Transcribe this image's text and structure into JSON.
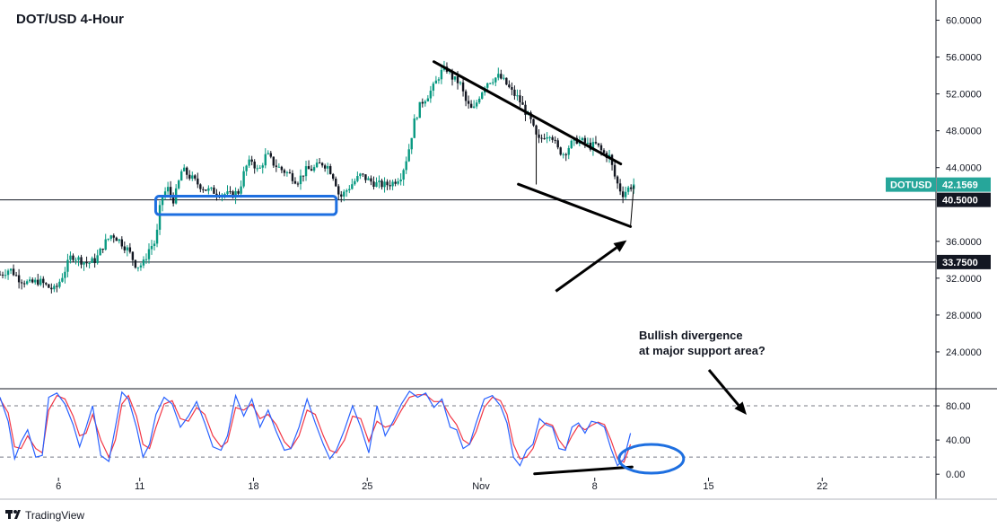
{
  "chart_data": {
    "type": "candlestick",
    "title": "DOT/USD 4-Hour",
    "symbol_tag": "DOTUSD",
    "last_price_label": "42.1569",
    "price_axis": {
      "range": [
        20,
        62
      ],
      "ticks": [
        {
          "value": 60,
          "label": "60.0000"
        },
        {
          "value": 56,
          "label": "56.0000"
        },
        {
          "value": 52,
          "label": "52.0000"
        },
        {
          "value": 48,
          "label": "48.0000"
        },
        {
          "value": 44,
          "label": "44.0000"
        },
        {
          "value": 36,
          "label": "36.0000"
        },
        {
          "value": 32,
          "label": "32.0000"
        },
        {
          "value": 28,
          "label": "28.0000"
        },
        {
          "value": 24,
          "label": "24.0000"
        }
      ]
    },
    "horizontal_levels": [
      {
        "value": 40.5,
        "label": "40.5000"
      },
      {
        "value": 33.75,
        "label": "33.7500"
      }
    ],
    "support_zone": {
      "low": 38.9,
      "high": 40.9,
      "start_day": 12.2,
      "end_day": 23.1
    },
    "time_axis": {
      "range": [
        2.4,
        25.2
      ],
      "ticks": [
        {
          "day": 6,
          "label": "6"
        },
        {
          "day": 11,
          "label": "11"
        },
        {
          "day": 18,
          "label": "18"
        },
        {
          "day": 25,
          "label": "25"
        },
        {
          "day": 32,
          "label": "Nov"
        },
        {
          "day": 39,
          "label": "8"
        },
        {
          "day": 46,
          "label": "15"
        },
        {
          "day": 53,
          "label": "22"
        }
      ]
    },
    "price_path": [
      [
        2.4,
        32.4
      ],
      [
        3.0,
        33.0
      ],
      [
        3.6,
        31.9
      ],
      [
        4.2,
        31.4
      ],
      [
        4.8,
        31.7
      ],
      [
        5.4,
        31.0
      ],
      [
        5.8,
        30.7
      ],
      [
        6.3,
        32.5
      ],
      [
        6.8,
        34.5
      ],
      [
        7.3,
        34.0
      ],
      [
        7.8,
        33.6
      ],
      [
        8.3,
        34.0
      ],
      [
        8.8,
        35.7
      ],
      [
        9.3,
        36.8
      ],
      [
        9.8,
        36.0
      ],
      [
        10.3,
        35.0
      ],
      [
        10.8,
        33.3
      ],
      [
        11.2,
        33.5
      ],
      [
        11.6,
        35.3
      ],
      [
        12.0,
        36.0
      ],
      [
        12.3,
        40.5
      ],
      [
        12.7,
        41.8
      ],
      [
        13.1,
        40.4
      ],
      [
        13.6,
        43.8
      ],
      [
        14.1,
        43.0
      ],
      [
        14.6,
        42.2
      ],
      [
        15.1,
        41.6
      ],
      [
        15.6,
        41.4
      ],
      [
        16.1,
        41.2
      ],
      [
        16.6,
        41.0
      ],
      [
        17.1,
        41.4
      ],
      [
        17.5,
        44.0
      ],
      [
        17.9,
        44.8
      ],
      [
        18.3,
        43.5
      ],
      [
        18.8,
        45.5
      ],
      [
        19.2,
        44.5
      ],
      [
        19.7,
        43.8
      ],
      [
        20.2,
        43.3
      ],
      [
        20.7,
        42.5
      ],
      [
        21.2,
        43.7
      ],
      [
        21.7,
        43.9
      ],
      [
        22.2,
        44.5
      ],
      [
        22.6,
        44.1
      ],
      [
        23.0,
        42.8
      ],
      [
        23.3,
        40.7
      ],
      [
        23.7,
        41.5
      ],
      [
        24.1,
        42.3
      ],
      [
        24.6,
        43.2
      ],
      [
        25.1,
        42.6
      ],
      [
        25.6,
        42.2
      ],
      [
        26.1,
        42.1
      ],
      [
        26.6,
        42.4
      ],
      [
        27.1,
        43.2
      ],
      [
        27.5,
        45.5
      ],
      [
        27.9,
        49.0
      ],
      [
        28.3,
        51.0
      ],
      [
        28.7,
        51.8
      ],
      [
        29.1,
        52.8
      ],
      [
        29.5,
        54.3
      ],
      [
        29.9,
        54.7
      ],
      [
        30.3,
        53.6
      ],
      [
        30.7,
        53.2
      ],
      [
        31.1,
        51.0
      ],
      [
        31.5,
        50.1
      ],
      [
        31.9,
        51.8
      ],
      [
        32.3,
        53.2
      ],
      [
        32.7,
        53.6
      ],
      [
        33.1,
        53.9
      ],
      [
        33.5,
        53.2
      ],
      [
        33.9,
        52.2
      ],
      [
        34.3,
        51.5
      ],
      [
        34.7,
        50.2
      ],
      [
        35.1,
        48.9
      ],
      [
        35.5,
        46.8
      ],
      [
        35.9,
        47.5
      ],
      [
        36.3,
        47.8
      ],
      [
        36.7,
        46.0
      ],
      [
        37.1,
        45.5
      ],
      [
        37.5,
        46.5
      ],
      [
        37.9,
        47.0
      ],
      [
        38.3,
        46.8
      ],
      [
        38.7,
        46.3
      ],
      [
        39.1,
        46.5
      ],
      [
        39.5,
        45.6
      ],
      [
        39.9,
        45.2
      ],
      [
        40.3,
        42.6
      ],
      [
        40.7,
        41.1
      ],
      [
        41.1,
        41.8
      ],
      [
        41.4,
        42.2
      ]
    ],
    "trendlines": [
      {
        "from": [
          29.1,
          55.5
        ],
        "to": [
          40.6,
          44.4
        ],
        "width": 3
      },
      {
        "from": [
          34.3,
          42.2
        ],
        "to": [
          41.2,
          37.6
        ],
        "width": 3
      },
      {
        "from": [
          35.4,
          42.2
        ],
        "to": [
          35.4,
          48.0
        ],
        "width": 1
      },
      {
        "from": [
          41.2,
          37.6
        ],
        "to": [
          41.4,
          42.0
        ],
        "width": 1
      }
    ],
    "annotation": {
      "lines": [
        "Bullish divergence",
        "at major support area?"
      ],
      "arrows": [
        {
          "from": [
            35.5,
            30.0
          ],
          "to": [
            41.3,
            36.5
          ]
        },
        {
          "from": [
            37.5,
            24.0
          ],
          "to": [
            40.8,
            20.4
          ]
        }
      ]
    },
    "oscillator": {
      "range": [
        -4,
        100
      ],
      "ticks": [
        {
          "value": 80,
          "label": "80.00"
        },
        {
          "value": 40,
          "label": "40.00"
        },
        {
          "value": 0,
          "label": "0.00"
        }
      ],
      "levels": [
        80,
        20
      ],
      "k_color": "#2962ff",
      "d_color": "#f23645",
      "k_values": [
        [
          2.4,
          90
        ],
        [
          2.9,
          62
        ],
        [
          3.3,
          18
        ],
        [
          3.7,
          38
        ],
        [
          4.1,
          52
        ],
        [
          4.6,
          20
        ],
        [
          5.0,
          22
        ],
        [
          5.4,
          90
        ],
        [
          5.9,
          95
        ],
        [
          6.4,
          82
        ],
        [
          6.9,
          58
        ],
        [
          7.3,
          32
        ],
        [
          7.7,
          55
        ],
        [
          8.1,
          80
        ],
        [
          8.6,
          22
        ],
        [
          9.1,
          15
        ],
        [
          9.5,
          55
        ],
        [
          9.9,
          96
        ],
        [
          10.3,
          88
        ],
        [
          10.8,
          55
        ],
        [
          11.2,
          20
        ],
        [
          11.6,
          35
        ],
        [
          12.0,
          70
        ],
        [
          12.5,
          90
        ],
        [
          13.0,
          82
        ],
        [
          13.5,
          55
        ],
        [
          14.0,
          68
        ],
        [
          14.5,
          85
        ],
        [
          15.0,
          60
        ],
        [
          15.5,
          32
        ],
        [
          16.0,
          28
        ],
        [
          16.4,
          45
        ],
        [
          16.9,
          92
        ],
        [
          17.4,
          68
        ],
        [
          17.9,
          88
        ],
        [
          18.4,
          55
        ],
        [
          18.9,
          75
        ],
        [
          19.4,
          50
        ],
        [
          19.9,
          28
        ],
        [
          20.3,
          30
        ],
        [
          20.8,
          55
        ],
        [
          21.3,
          88
        ],
        [
          21.8,
          60
        ],
        [
          22.3,
          35
        ],
        [
          22.7,
          18
        ],
        [
          23.1,
          28
        ],
        [
          23.6,
          52
        ],
        [
          24.1,
          80
        ],
        [
          24.6,
          55
        ],
        [
          25.1,
          25
        ],
        [
          25.6,
          80
        ],
        [
          26.1,
          45
        ],
        [
          26.6,
          62
        ],
        [
          27.1,
          82
        ],
        [
          27.6,
          97
        ],
        [
          28.1,
          90
        ],
        [
          28.6,
          95
        ],
        [
          29.1,
          78
        ],
        [
          29.6,
          88
        ],
        [
          30.1,
          55
        ],
        [
          30.5,
          52
        ],
        [
          30.9,
          30
        ],
        [
          31.3,
          35
        ],
        [
          31.7,
          60
        ],
        [
          32.2,
          88
        ],
        [
          32.7,
          92
        ],
        [
          33.2,
          80
        ],
        [
          33.6,
          60
        ],
        [
          34.0,
          20
        ],
        [
          34.4,
          10
        ],
        [
          34.8,
          28
        ],
        [
          35.2,
          35
        ],
        [
          35.6,
          65
        ],
        [
          36.0,
          58
        ],
        [
          36.4,
          55
        ],
        [
          36.8,
          30
        ],
        [
          37.2,
          28
        ],
        [
          37.6,
          55
        ],
        [
          38.0,
          60
        ],
        [
          38.4,
          48
        ],
        [
          38.8,
          62
        ],
        [
          39.2,
          60
        ],
        [
          39.6,
          55
        ],
        [
          40.0,
          30
        ],
        [
          40.4,
          10
        ],
        [
          40.8,
          18
        ],
        [
          41.2,
          48
        ]
      ],
      "d_values": [
        [
          2.4,
          88
        ],
        [
          2.9,
          72
        ],
        [
          3.3,
          32
        ],
        [
          3.7,
          30
        ],
        [
          4.1,
          45
        ],
        [
          4.6,
          30
        ],
        [
          5.0,
          25
        ],
        [
          5.4,
          75
        ],
        [
          5.9,
          92
        ],
        [
          6.4,
          88
        ],
        [
          6.9,
          68
        ],
        [
          7.3,
          45
        ],
        [
          7.7,
          48
        ],
        [
          8.1,
          70
        ],
        [
          8.6,
          40
        ],
        [
          9.1,
          20
        ],
        [
          9.5,
          40
        ],
        [
          9.9,
          82
        ],
        [
          10.3,
          92
        ],
        [
          10.8,
          68
        ],
        [
          11.2,
          35
        ],
        [
          11.6,
          30
        ],
        [
          12.0,
          55
        ],
        [
          12.5,
          82
        ],
        [
          13.0,
          86
        ],
        [
          13.5,
          65
        ],
        [
          14.0,
          62
        ],
        [
          14.5,
          78
        ],
        [
          15.0,
          70
        ],
        [
          15.5,
          45
        ],
        [
          16.0,
          32
        ],
        [
          16.4,
          38
        ],
        [
          16.9,
          78
        ],
        [
          17.4,
          75
        ],
        [
          17.9,
          82
        ],
        [
          18.4,
          65
        ],
        [
          18.9,
          70
        ],
        [
          19.4,
          58
        ],
        [
          19.9,
          38
        ],
        [
          20.3,
          30
        ],
        [
          20.8,
          45
        ],
        [
          21.3,
          75
        ],
        [
          21.8,
          70
        ],
        [
          22.3,
          45
        ],
        [
          22.7,
          28
        ],
        [
          23.1,
          25
        ],
        [
          23.6,
          40
        ],
        [
          24.1,
          68
        ],
        [
          24.6,
          65
        ],
        [
          25.1,
          38
        ],
        [
          25.6,
          62
        ],
        [
          26.1,
          55
        ],
        [
          26.6,
          58
        ],
        [
          27.1,
          75
        ],
        [
          27.6,
          90
        ],
        [
          28.1,
          93
        ],
        [
          28.6,
          93
        ],
        [
          29.1,
          85
        ],
        [
          29.6,
          85
        ],
        [
          30.1,
          68
        ],
        [
          30.5,
          58
        ],
        [
          30.9,
          40
        ],
        [
          31.3,
          35
        ],
        [
          31.7,
          50
        ],
        [
          32.2,
          78
        ],
        [
          32.7,
          90
        ],
        [
          33.2,
          86
        ],
        [
          33.6,
          70
        ],
        [
          34.0,
          35
        ],
        [
          34.4,
          18
        ],
        [
          34.8,
          20
        ],
        [
          35.2,
          30
        ],
        [
          35.6,
          52
        ],
        [
          36.0,
          60
        ],
        [
          36.4,
          57
        ],
        [
          36.8,
          40
        ],
        [
          37.2,
          30
        ],
        [
          37.6,
          45
        ],
        [
          38.0,
          57
        ],
        [
          38.4,
          52
        ],
        [
          38.8,
          57
        ],
        [
          39.2,
          61
        ],
        [
          39.6,
          58
        ],
        [
          40.0,
          40
        ],
        [
          40.4,
          18
        ],
        [
          40.8,
          14
        ],
        [
          41.2,
          35
        ]
      ],
      "divergence_line": {
        "from": [
          35.3,
          0.5
        ],
        "to": [
          41.3,
          8.5
        ]
      },
      "highlight_ellipse": {
        "day": 41.6,
        "value": 18
      }
    },
    "colors": {
      "up": "#089981",
      "down": "#131722",
      "zone_border": "#1e6fe0",
      "tag_bg": "#26a69a",
      "level_tag_bg": "#131722",
      "grid": "#e0e3eb"
    }
  },
  "branding": {
    "label": "TradingView"
  }
}
